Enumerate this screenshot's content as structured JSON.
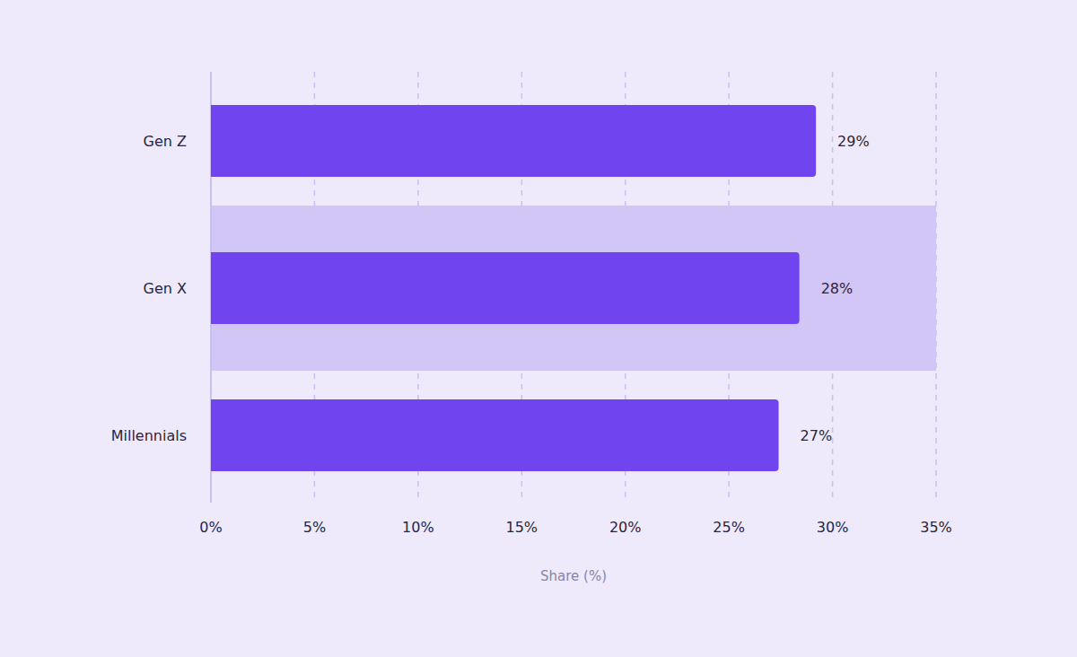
{
  "chart_data": {
    "type": "bar",
    "orientation": "horizontal",
    "categories": [
      "Gen Z",
      "Gen X",
      "Millennials"
    ],
    "values": [
      29.2,
      28.4,
      27.4
    ],
    "value_labels": [
      "29%",
      "28%",
      "27%"
    ],
    "color": "#7045f0",
    "xlabel": "Share (%)",
    "xlim": [
      0,
      35
    ],
    "xticks": [
      {
        "value": 0,
        "label": "0%"
      },
      {
        "value": 5,
        "label": "5%"
      },
      {
        "value": 10,
        "label": "10%"
      },
      {
        "value": 15,
        "label": "15%"
      },
      {
        "value": 20,
        "label": "20%"
      },
      {
        "value": 25,
        "label": "25%"
      },
      {
        "value": 30,
        "label": "30%"
      },
      {
        "value": 35,
        "label": "35%"
      }
    ],
    "grid": true,
    "data_labels": true
  }
}
